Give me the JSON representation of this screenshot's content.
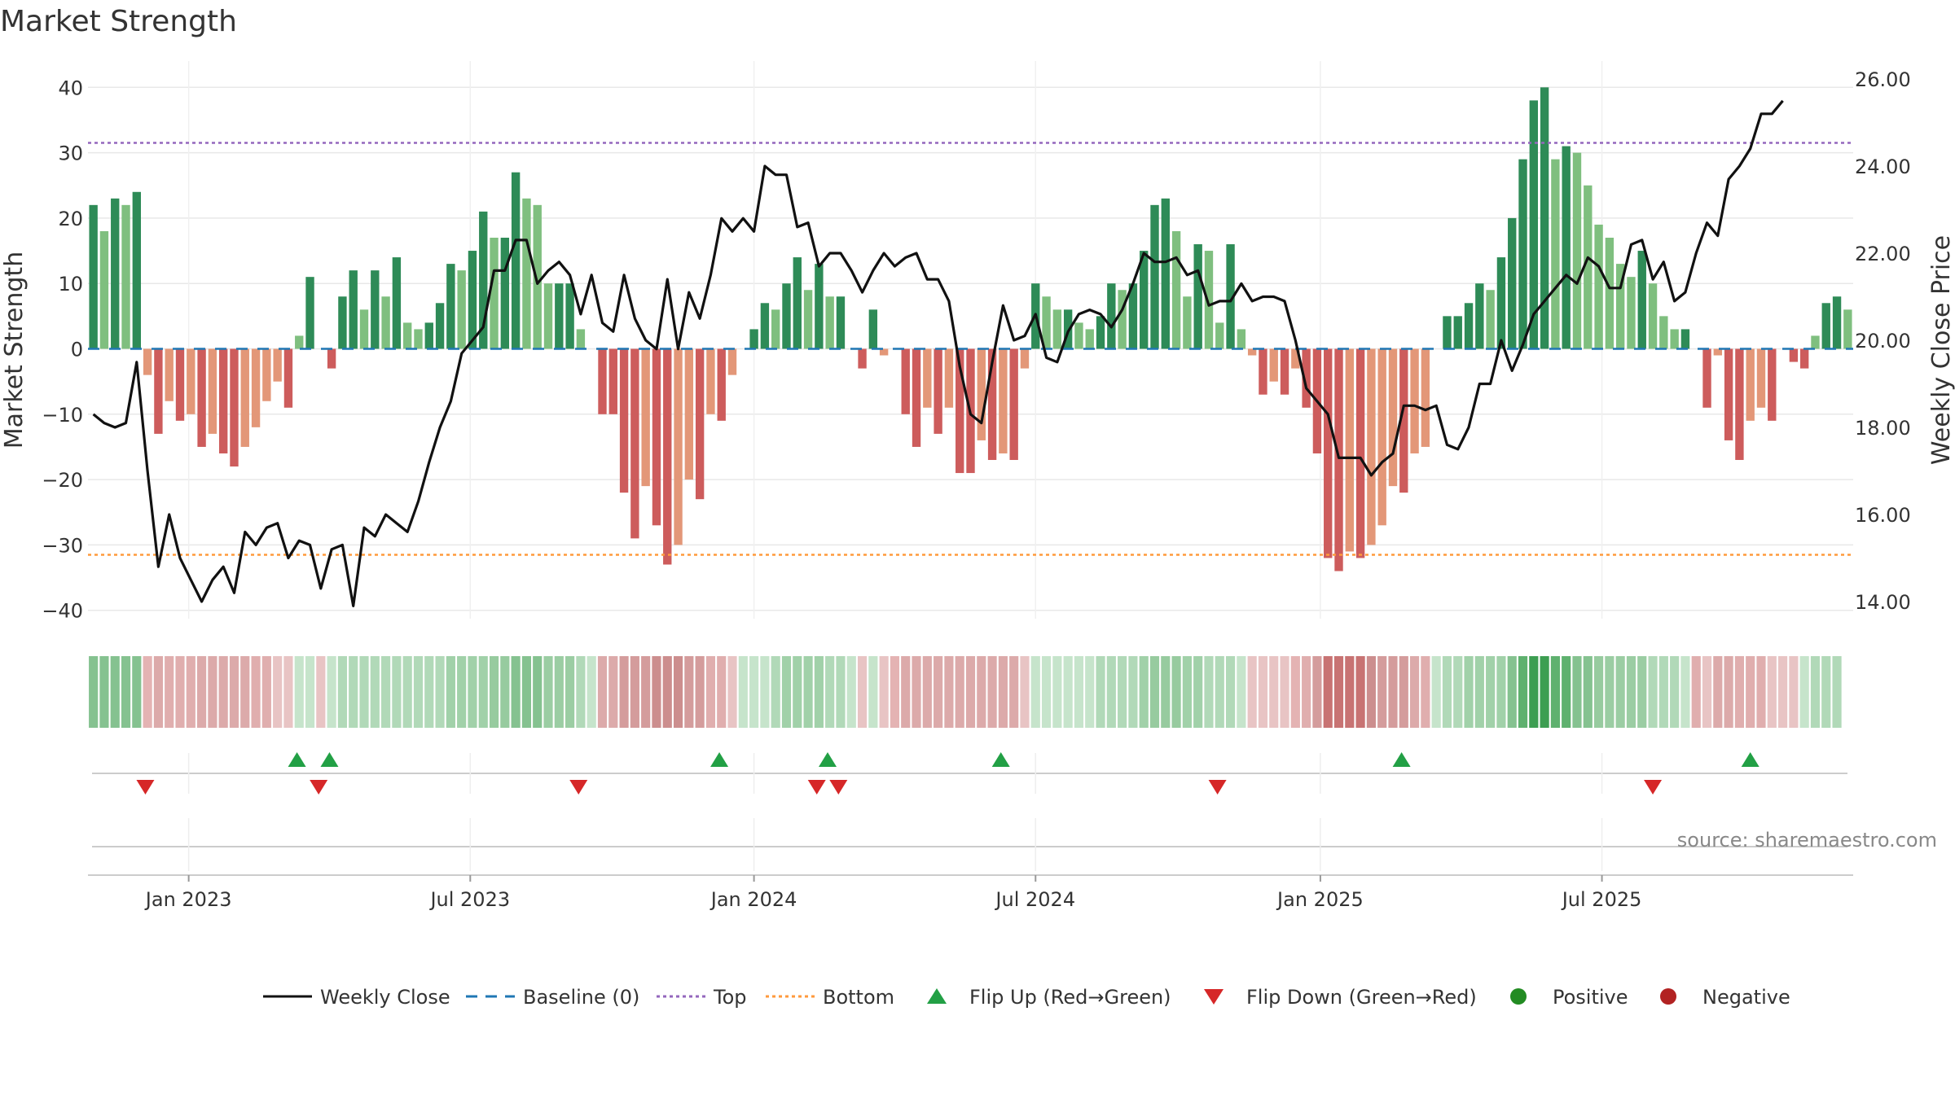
{
  "chart_data": {
    "type": "bar",
    "title": "Market Strength",
    "ylabel": "Market Strength",
    "y2label": "Weekly Close Price",
    "ylim": [
      -42,
      43
    ],
    "y2lim": [
      13.0,
      26.25
    ],
    "yticks": [
      40,
      30,
      20,
      10,
      0,
      -10,
      -20,
      -30,
      -40
    ],
    "yticks_labels": [
      "40",
      "30",
      "20",
      "10",
      "0",
      "−10",
      "−20",
      "−30",
      "−40"
    ],
    "y2ticks": [
      26,
      24,
      22,
      20,
      18,
      16,
      14
    ],
    "y2ticks_labels": [
      "26.00",
      "24.00",
      "22.00",
      "20.00",
      "18.00",
      "16.00",
      "14.00"
    ],
    "xticks": [
      {
        "label": "Jan 2023",
        "week": 9.3
      },
      {
        "label": "Jul 2023",
        "week": 35.3
      },
      {
        "label": "Jan 2024",
        "week": 61.5
      },
      {
        "label": "Jul 2024",
        "week": 87.5
      },
      {
        "label": "Jan 2025",
        "week": 113.8
      },
      {
        "label": "Jul 2025",
        "week": 139.8
      }
    ],
    "top_threshold": 31.5,
    "bottom_threshold": -31.5,
    "strength": [
      22,
      18,
      23,
      22,
      24,
      -4,
      -13,
      -8,
      -11,
      -10,
      -15,
      -13,
      -16,
      -18,
      -15,
      -12,
      -8,
      -5,
      -9,
      2,
      11,
      0,
      -3,
      8,
      12,
      6,
      12,
      8,
      14,
      4,
      3,
      4,
      7,
      13,
      12,
      15,
      21,
      17,
      17,
      27,
      23,
      22,
      10,
      10,
      10,
      3,
      0,
      -10,
      -10,
      -22,
      -29,
      -21,
      -27,
      -33,
      -30,
      -20,
      -23,
      -10,
      -11,
      -4,
      0,
      3,
      7,
      6,
      10,
      14,
      9,
      13,
      8,
      8,
      0,
      -3,
      6,
      -1,
      0,
      -10,
      -15,
      -9,
      -13,
      -9,
      -19,
      -19,
      -14,
      -17,
      -16,
      -17,
      -3,
      10,
      8,
      6,
      6,
      4,
      3,
      5,
      10,
      9,
      10,
      15,
      22,
      23,
      18,
      8,
      16,
      15,
      4,
      16,
      3,
      -1,
      -7,
      -5,
      -7,
      -3,
      -9,
      -16,
      -32,
      -34,
      -31,
      -32,
      -30,
      -27,
      -21,
      -22,
      -16,
      -15,
      0,
      5,
      5,
      7,
      10,
      9,
      14,
      20,
      29,
      38,
      40,
      29,
      31,
      30,
      25,
      19,
      17,
      13,
      11,
      15,
      10,
      5,
      3,
      3,
      0,
      -9,
      -1,
      -14,
      -17,
      -11,
      -9,
      -11,
      0,
      -2,
      -3,
      2,
      7,
      8,
      6
    ],
    "close": [
      18.3,
      18.1,
      18.0,
      18.1,
      19.5,
      17.0,
      14.8,
      16.0,
      15.0,
      14.5,
      14.0,
      14.5,
      14.8,
      14.2,
      15.6,
      15.3,
      15.7,
      15.8,
      15.0,
      15.4,
      15.3,
      14.3,
      15.2,
      15.3,
      13.9,
      15.7,
      15.5,
      16.0,
      15.8,
      15.6,
      16.3,
      17.2,
      18.0,
      18.6,
      19.7,
      20.0,
      20.3,
      21.6,
      21.6,
      22.3,
      22.3,
      21.3,
      21.6,
      21.8,
      21.5,
      20.6,
      21.5,
      20.4,
      20.2,
      21.5,
      20.5,
      20.0,
      19.8,
      21.4,
      19.8,
      21.1,
      20.5,
      21.5,
      22.8,
      22.5,
      22.8,
      22.5,
      24.0,
      23.8,
      23.8,
      22.6,
      22.7,
      21.7,
      22.0,
      22.0,
      21.6,
      21.1,
      21.6,
      22.0,
      21.7,
      21.9,
      22.0,
      21.4,
      21.4,
      20.9,
      19.4,
      18.3,
      18.1,
      19.5,
      20.8,
      20.0,
      20.1,
      20.6,
      19.6,
      19.5,
      20.2,
      20.6,
      20.7,
      20.6,
      20.3,
      20.7,
      21.3,
      22.0,
      21.8,
      21.8,
      21.9,
      21.5,
      21.6,
      20.8,
      20.9,
      20.9,
      21.3,
      20.9,
      21.0,
      21.0,
      20.9,
      20.0,
      18.9,
      18.6,
      18.3,
      17.3,
      17.3,
      17.3,
      16.9,
      17.2,
      17.4,
      18.5,
      18.5,
      18.4,
      18.5,
      17.6,
      17.5,
      18.0,
      19.0,
      19.0,
      20.0,
      19.3,
      19.9,
      20.6,
      20.9,
      21.2,
      21.5,
      21.3,
      21.9,
      21.7,
      21.2,
      21.2,
      22.2,
      22.3,
      21.4,
      21.8,
      20.9,
      21.1,
      22.0,
      22.7,
      22.4,
      23.7,
      24.0,
      24.4,
      25.2,
      25.2,
      25.5
    ],
    "regime_colors": [
      "#85c290",
      "#85c290",
      "#85c290",
      "#85c290",
      "#85c290",
      "#e4b3b3",
      "#dcaaaa",
      "#e0aeae",
      "#e0aeae",
      "#e0aeae",
      "#dcaaaa",
      "#dcaaaa",
      "#dcaaaa",
      "#dcaaaa",
      "#dcaaaa",
      "#e0aeae",
      "#e0aeae",
      "#e8c4c4",
      "#e8c4c4",
      "#c6e4cb",
      "#c6e4cb",
      "#e8c4c4",
      "#c6e4cb",
      "#b1d9b8",
      "#b1d9b8",
      "#b1d9b8",
      "#b1d9b8",
      "#b1d9b8",
      "#b1d9b8",
      "#b1d9b8",
      "#b1d9b8",
      "#b1d9b8",
      "#b1d9b8",
      "#a1d1a9",
      "#a1d1a9",
      "#a1d1a9",
      "#a1d1a9",
      "#97cb9f",
      "#97cb9f",
      "#85c290",
      "#85c290",
      "#85c290",
      "#9bcda3",
      "#9bcda3",
      "#9bcda3",
      "#b1d9b8",
      "#c6e4cb",
      "#dcaaaa",
      "#dcaaaa",
      "#d49c9c",
      "#d49c9c",
      "#d49c9c",
      "#cc8e8e",
      "#cc8e8e",
      "#cc8e8e",
      "#d49c9c",
      "#d49c9c",
      "#e0aeae",
      "#e0aeae",
      "#e8c4c4",
      "#c6e4cb",
      "#c6e4cb",
      "#c6e4cb",
      "#b1d9b8",
      "#a1d1a9",
      "#a1d1a9",
      "#a1d1a9",
      "#a1d1a9",
      "#b1d9b8",
      "#b1d9b8",
      "#c6e4cb",
      "#e8c4c4",
      "#c6e4cb",
      "#e8c4c4",
      "#e4b3b3",
      "#dcaaaa",
      "#dcaaaa",
      "#dcaaaa",
      "#dcaaaa",
      "#dcaaaa",
      "#dcaaaa",
      "#dcaaaa",
      "#dcaaaa",
      "#dcaaaa",
      "#dcaaaa",
      "#dcaaaa",
      "#e8c4c4",
      "#c6e4cb",
      "#c6e4cb",
      "#c6e4cb",
      "#c6e4cb",
      "#c6e4cb",
      "#c6e4cb",
      "#b1d9b8",
      "#b1d9b8",
      "#b1d9b8",
      "#b1d9b8",
      "#a1d1a9",
      "#97cb9f",
      "#97cb9f",
      "#97cb9f",
      "#a1d1a9",
      "#a1d1a9",
      "#b1d9b8",
      "#b1d9b8",
      "#b1d9b8",
      "#c6e4cb",
      "#e8c4c4",
      "#e8c4c4",
      "#e8c4c4",
      "#e8c4c4",
      "#e4b3b3",
      "#e0aeae",
      "#d49c9c",
      "#c87373",
      "#c87373",
      "#c87373",
      "#c87373",
      "#cc8e8e",
      "#d49c9c",
      "#d49c9c",
      "#d49c9c",
      "#dcaaaa",
      "#e0aeae",
      "#c6e4cb",
      "#b1d9b8",
      "#b1d9b8",
      "#a1d1a9",
      "#a1d1a9",
      "#a1d1a9",
      "#a1d1a9",
      "#85c290",
      "#5fb16f",
      "#3d9e52",
      "#3d9e52",
      "#5fb16f",
      "#5fb16f",
      "#85c290",
      "#85c290",
      "#97cb9f",
      "#9bcda3",
      "#9bcda3",
      "#9bcda3",
      "#9bcda3",
      "#b1d9b8",
      "#b1d9b8",
      "#b1d9b8",
      "#c6e4cb",
      "#e0aeae",
      "#e8c4c4",
      "#dcaaaa",
      "#dcaaaa",
      "#e0aeae",
      "#e0aeae",
      "#e0aeae",
      "#e8c4c4",
      "#e8c4c4",
      "#e8c4c4",
      "#c6e4cb",
      "#b1d9b8",
      "#b1d9b8",
      "#b1d9b8"
    ],
    "flip_up_weeks": [
      19.3,
      22.3,
      58.3,
      68.3,
      84.3,
      121.3,
      153.5
    ],
    "flip_down_weeks": [
      5.3,
      21.3,
      45.3,
      67.3,
      69.3,
      104.3,
      144.5
    ],
    "legend": [
      "Weekly Close",
      "Baseline (0)",
      "Top",
      "Bottom",
      "Flip Up (Red→Green)",
      "Flip Down (Green→Red)",
      "Positive",
      "Negative"
    ],
    "legend_placement": "bottom",
    "source": "source: sharemaestro.com",
    "colors": {
      "bar_green_dark": "#2e8b57",
      "bar_green_light": "#7fbf7f",
      "bar_red_dark": "#cd5c5c",
      "bar_red_light": "#e39778",
      "close_line": "#111111",
      "baseline": "#1f77b4",
      "top_line": "#9467bd",
      "bottom_line": "#ff9a3c",
      "flip_up": "#22a045",
      "flip_down": "#d62728",
      "positive": "#228b22",
      "negative": "#b22222",
      "grid": "#e8e8e8"
    }
  }
}
